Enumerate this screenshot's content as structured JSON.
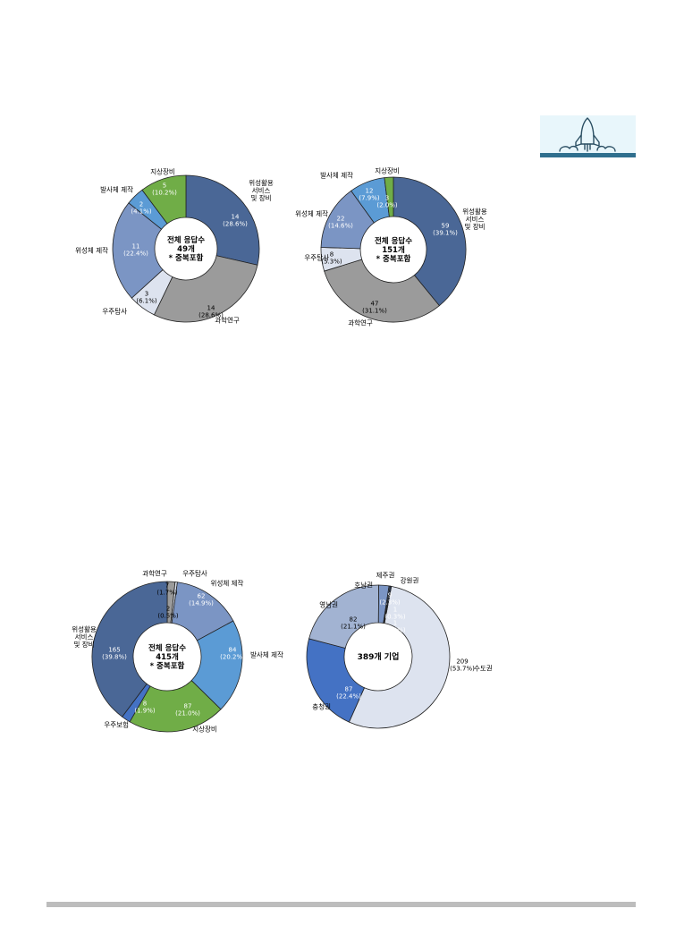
{
  "chart_data": [
    {
      "type": "pie",
      "center_label": [
        "전체 응답수",
        "49개",
        "* 중복포함"
      ],
      "slices": [
        {
          "label": [
            "위성활용",
            "서비스",
            "및 장비"
          ],
          "value": 14,
          "percent": "(28.6%)",
          "color": "#4a6796"
        },
        {
          "label": [
            "과학연구"
          ],
          "value": 14,
          "percent": "(28.6%)",
          "color": "#9b9b9b"
        },
        {
          "label": [
            "우주탐사"
          ],
          "value": 3,
          "percent": "(6.1%)",
          "color": "#dde3ef"
        },
        {
          "label": [
            "위성체 제작"
          ],
          "value": 11,
          "percent": "(22.4%)",
          "color": "#7b95c4"
        },
        {
          "label": [
            "발사체 제작"
          ],
          "value": 2,
          "percent": "(4.1%)",
          "color": "#5b9bd5"
        },
        {
          "label": [
            "지상장비"
          ],
          "value": 5,
          "percent": "(10.2%)",
          "color": "#70ad47"
        }
      ]
    },
    {
      "type": "pie",
      "center_label": [
        "전체 응답수",
        "151개",
        "* 중복포함"
      ],
      "slices": [
        {
          "label": [
            "위성활용",
            "서비스",
            "및 장비"
          ],
          "value": 59,
          "percent": "(39.1%)",
          "color": "#4a6796"
        },
        {
          "label": [
            "과학연구"
          ],
          "value": 47,
          "percent": "(31.1%)",
          "color": "#9b9b9b"
        },
        {
          "label": [
            "우주탐사"
          ],
          "value": 8,
          "percent": "(5.3%)",
          "color": "#dde3ef"
        },
        {
          "label": [
            "위성체 제작"
          ],
          "value": 22,
          "percent": "(14.6%)",
          "color": "#7b95c4"
        },
        {
          "label": [
            "발사체 제작"
          ],
          "value": 12,
          "percent": "(7.9%)",
          "color": "#5b9bd5"
        },
        {
          "label": [
            "지상장비"
          ],
          "value": 3,
          "percent": "(2.0%)",
          "color": "#70ad47"
        }
      ]
    },
    {
      "type": "pie",
      "center_label": [
        "전체 응답수",
        "415개",
        "* 중복포함"
      ],
      "slices": [
        {
          "label": [
            "과학연구"
          ],
          "value": 7,
          "percent": "(1.7%)",
          "color": "#9b9b9b"
        },
        {
          "label": [
            "우주탐사"
          ],
          "value": 2,
          "percent": "(0.5%)",
          "color": "#dde3ef"
        },
        {
          "label": [
            "위성체 제작"
          ],
          "value": 62,
          "percent": "(14.9%)",
          "color": "#7b95c4"
        },
        {
          "label": [
            "발사체 제작"
          ],
          "value": 84,
          "percent": "(20.2%)",
          "color": "#5b9bd5"
        },
        {
          "label": [
            "지상장비"
          ],
          "value": 87,
          "percent": "(21.0%)",
          "color": "#70ad47"
        },
        {
          "label": [
            "우주보험"
          ],
          "value": 8,
          "percent": "(1.9%)",
          "color": "#4472c4"
        },
        {
          "label": [
            "위성활용",
            "서비스",
            "및 장비"
          ],
          "value": 165,
          "percent": "(39.8%)",
          "color": "#4a6796"
        }
      ]
    },
    {
      "type": "pie",
      "center_label": [
        "389개 기업"
      ],
      "slices": [
        {
          "label": [
            "수도권"
          ],
          "value": 209,
          "percent": "(53.7%)",
          "color": "#dde3ef"
        },
        {
          "label": [
            "충청권"
          ],
          "value": 87,
          "percent": "(22.4%)",
          "color": "#4472c4"
        },
        {
          "label": [
            "영남권"
          ],
          "value": 82,
          "percent": "(21.1%)",
          "color": "#a2b3d2"
        },
        {
          "label": [
            "호남권"
          ],
          "value": 9,
          "percent": "(2.3%)",
          "color": "#7b95c4"
        },
        {
          "label": [
            "제주권"
          ],
          "value": 1,
          "percent": "(0.3%)",
          "color": "#4a6796"
        },
        {
          "label": [
            "강원권"
          ],
          "value": 1,
          "percent": "(0.3%)",
          "color": "#2e4a75"
        }
      ]
    }
  ],
  "logo": {
    "icon": "rocket-launch-icon",
    "bg": "#e8f6fb",
    "base": "#2f6f8e"
  }
}
